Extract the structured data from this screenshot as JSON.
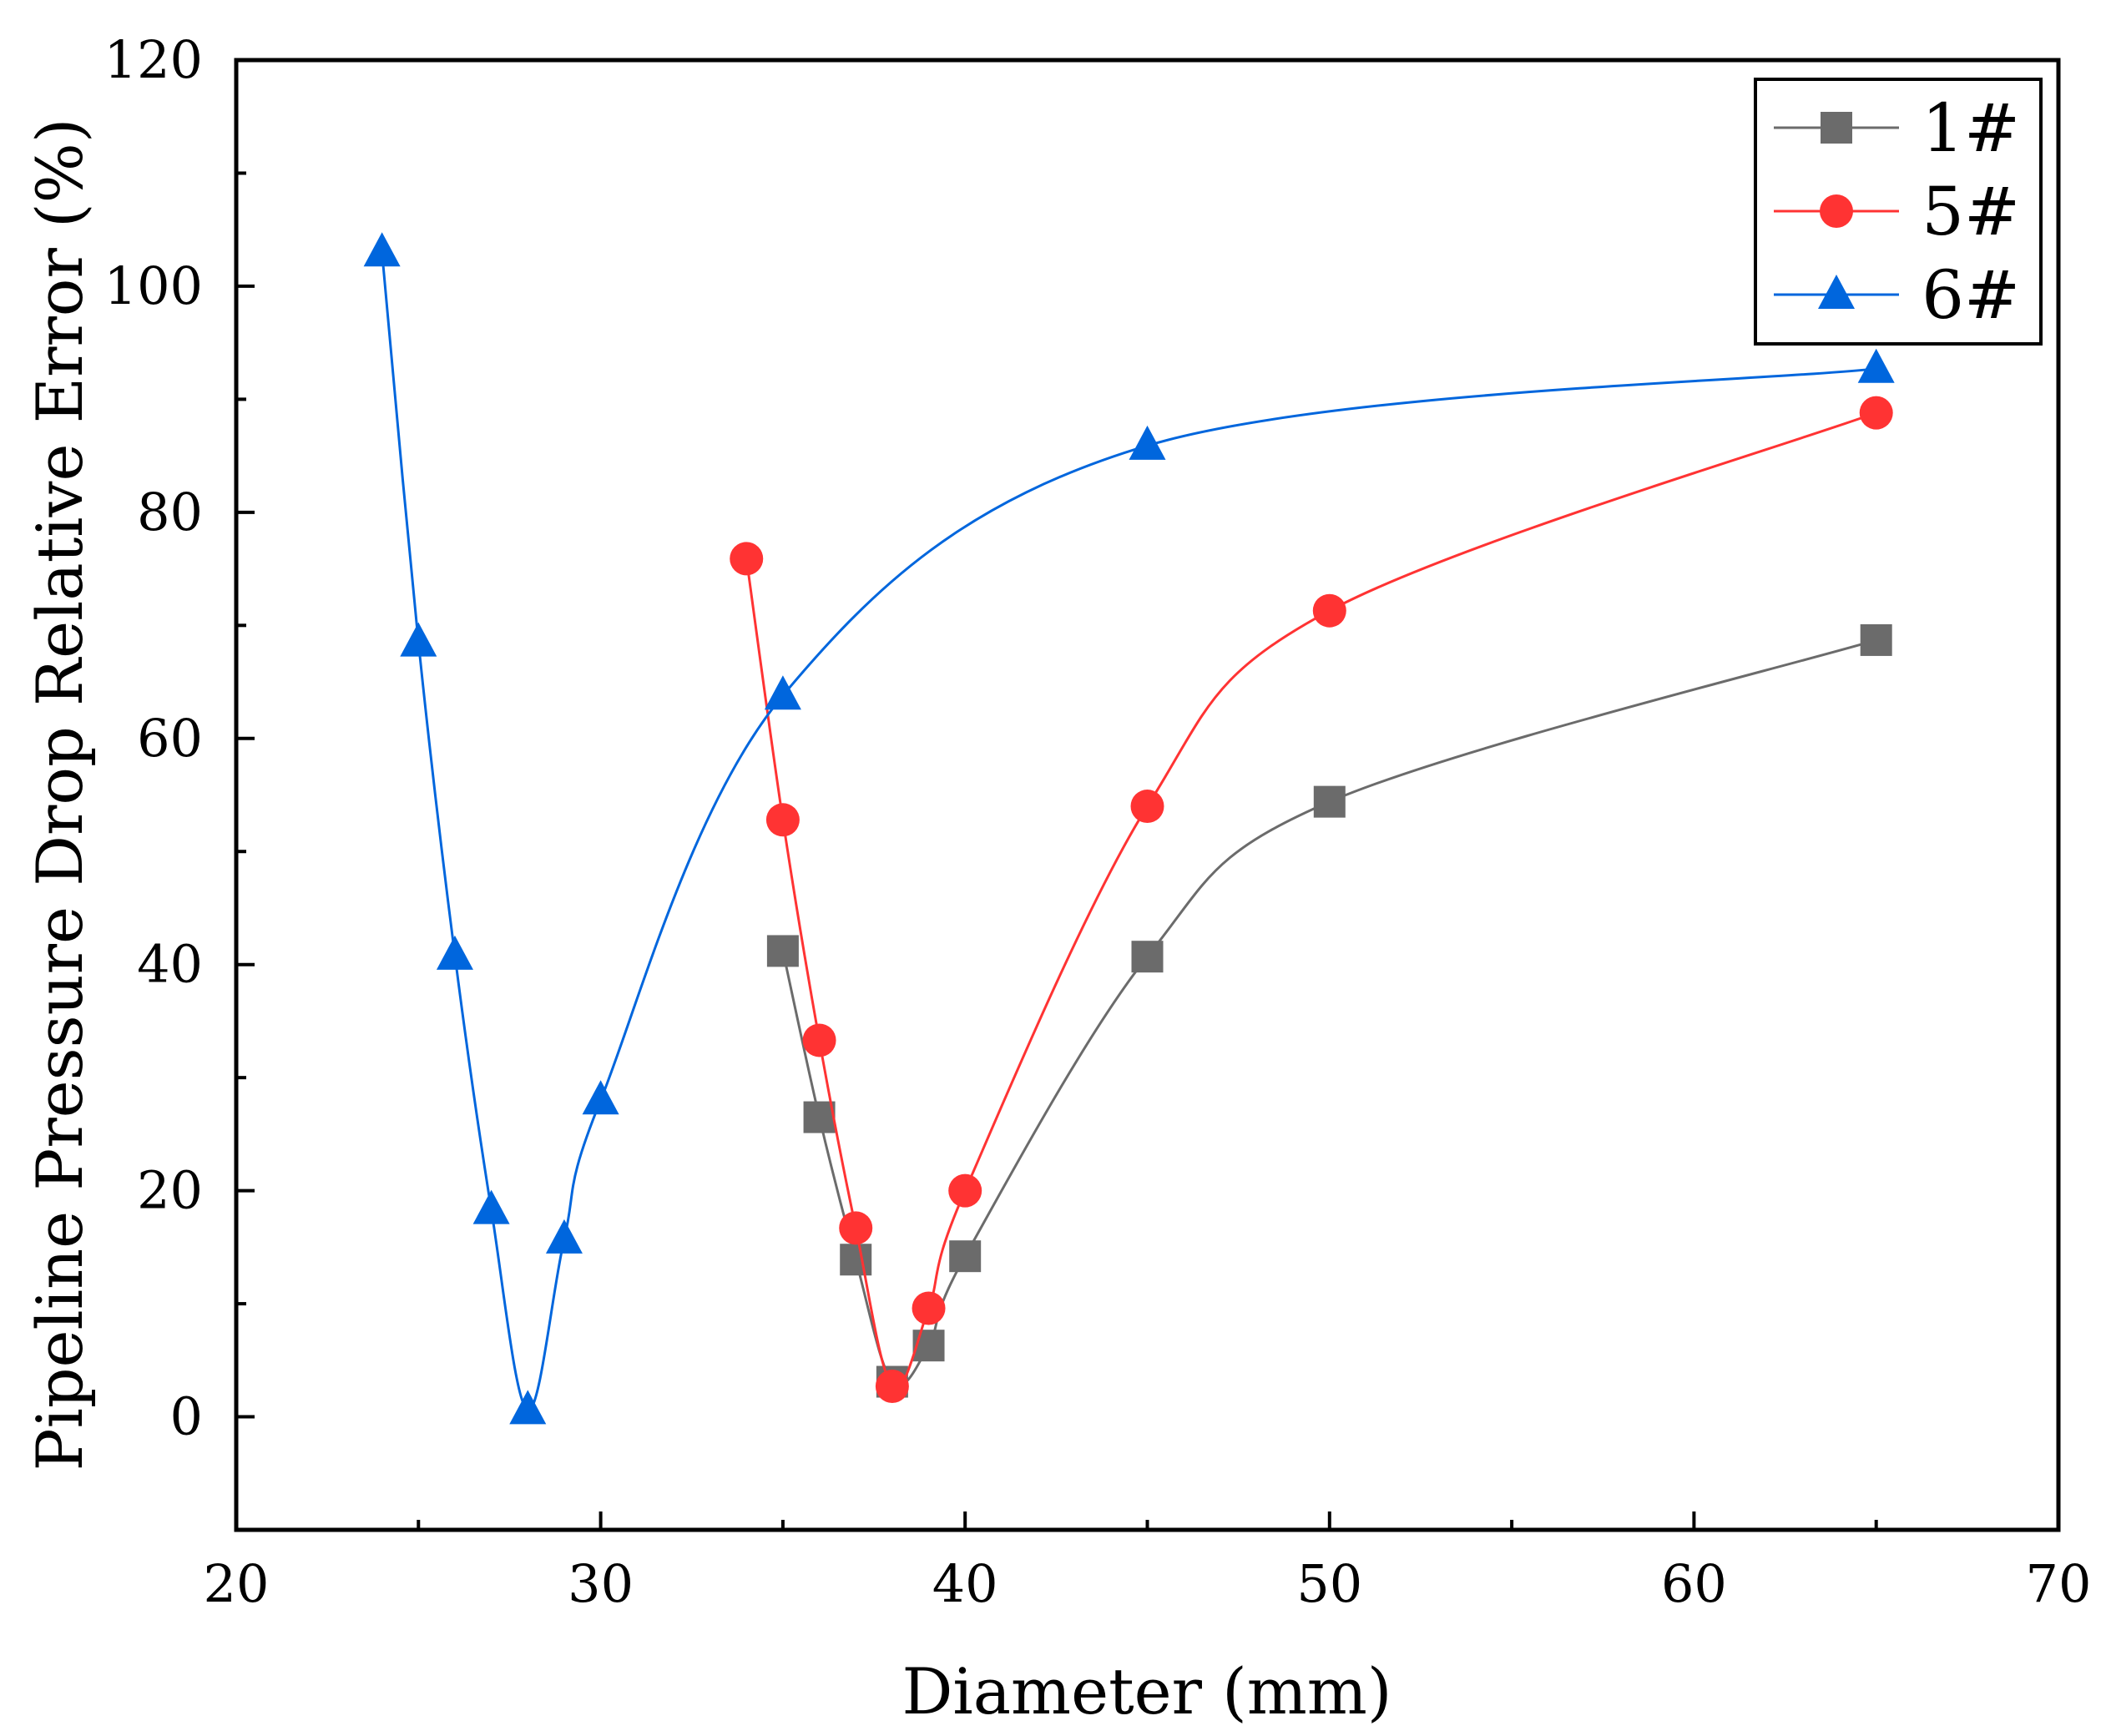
{
  "chart_data": {
    "type": "line",
    "xlabel": "Diameter (mm)",
    "ylabel": "Pipeline Pressure Drop Relative Error (%)",
    "xlim": [
      20,
      70
    ],
    "ylim": [
      -10,
      120
    ],
    "x_ticks": [
      20,
      30,
      40,
      50,
      60,
      70
    ],
    "y_ticks": [
      0,
      20,
      40,
      60,
      80,
      100,
      120
    ],
    "x_tick_labels": [
      "20",
      "30",
      "40",
      "50",
      "60",
      "70"
    ],
    "y_tick_labels": [
      "0",
      "20",
      "40",
      "60",
      "80",
      "100",
      "120"
    ],
    "x_minor_step": 5,
    "y_minor_step": 10,
    "grid": false,
    "legend_position": "top-right",
    "series": [
      {
        "name": "1#",
        "marker": "square",
        "color": "#6b6b6b",
        "x": [
          35,
          36,
          37,
          38,
          39,
          40,
          45,
          50,
          65
        ],
        "y": [
          41.2,
          26.5,
          13.9,
          3.1,
          6.3,
          14.2,
          40.7,
          54.4,
          68.7
        ]
      },
      {
        "name": "5#",
        "marker": "circle",
        "color": "#ff3333",
        "x": [
          34,
          35,
          36,
          37,
          38,
          39,
          40,
          45,
          50,
          65
        ],
        "y": [
          75.9,
          52.8,
          33.3,
          16.7,
          2.7,
          9.6,
          20.0,
          54.0,
          71.3,
          88.8
        ]
      },
      {
        "name": "6#",
        "marker": "triangle",
        "color": "#0066dd",
        "x": [
          24,
          25,
          26,
          27,
          28,
          29,
          30,
          35,
          45,
          65
        ],
        "y": [
          103.0,
          68.5,
          40.8,
          18.3,
          0.6,
          15.7,
          28.0,
          63.8,
          85.9,
          92.7
        ]
      }
    ]
  }
}
